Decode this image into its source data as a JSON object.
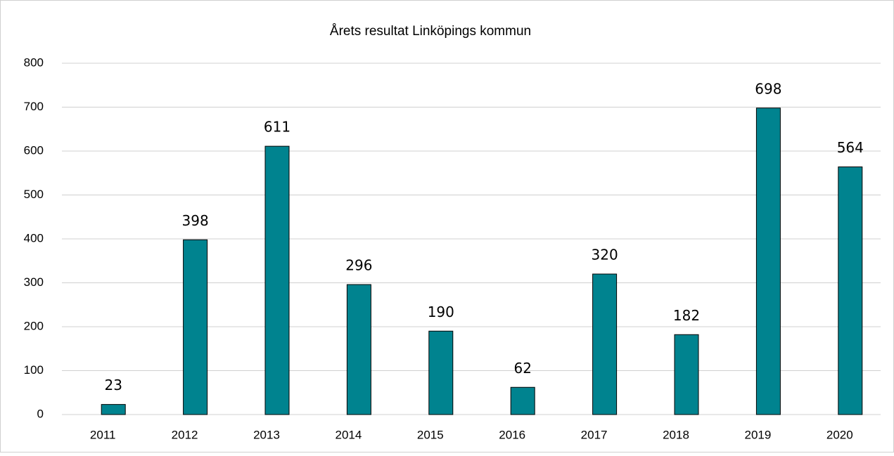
{
  "chart_data": {
    "type": "bar",
    "title": "Årets resultat Linköpings kommun",
    "categories": [
      "2011",
      "2012",
      "2013",
      "2014",
      "2015",
      "2016",
      "2017",
      "2018",
      "2019",
      "2020"
    ],
    "values": [
      23,
      398,
      611,
      296,
      190,
      62,
      320,
      182,
      698,
      564
    ],
    "color": "#00838f",
    "ylim": [
      0,
      800
    ],
    "yticks": [
      0,
      100,
      200,
      300,
      400,
      500,
      600,
      700,
      800
    ],
    "grid": true
  }
}
